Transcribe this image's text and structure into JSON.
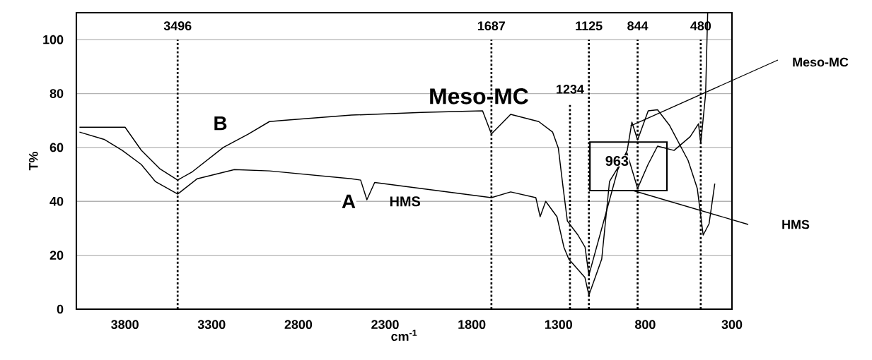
{
  "chart_data": {
    "type": "line",
    "xlabel": "cm$^{-1}$",
    "ylabel": "T%",
    "xlim": [
      4080,
      300
    ],
    "ylim": [
      0,
      110
    ],
    "xticks": [
      3800,
      3300,
      2800,
      2300,
      1800,
      1300,
      800,
      300
    ],
    "yticks": [
      0,
      20,
      40,
      60,
      80,
      100
    ],
    "grid": "y",
    "series": [
      {
        "name": "Meso-MC",
        "color": "#000000",
        "x": [
          4062,
          3799,
          3706,
          3597,
          3496,
          3411,
          3233,
          3088,
          2967,
          2898,
          2494,
          2089,
          1738,
          1687,
          1576,
          1414,
          1334,
          1301,
          1273,
          1249,
          1188,
          1147,
          1125,
          1025,
          958,
          904,
          877,
          844,
          783,
          729,
          661,
          553,
          500,
          466,
          432,
          399
        ],
        "values": [
          67.5,
          67.5,
          59,
          52,
          47.9,
          51,
          60,
          65,
          69.6,
          70,
          72,
          73,
          73.6,
          65,
          72.3,
          69.6,
          65.7,
          59.7,
          44.8,
          32.7,
          27.5,
          23,
          12.6,
          36,
          51.8,
          58.9,
          69.4,
          62.8,
          73.6,
          74,
          68.3,
          55.2,
          44.8,
          27.5,
          31.7,
          46.6
        ]
      },
      {
        "name": "HMS",
        "color": "#000000",
        "x": [
          4062,
          3920,
          3815,
          3706,
          3625,
          3496,
          3383,
          3169,
          2966,
          2494,
          2441,
          2405,
          2360,
          1687,
          1576,
          1431,
          1406,
          1374,
          1309,
          1269,
          1241,
          1148,
          1125,
          1051,
          1006,
          958,
          905,
          844,
          784,
          729,
          634,
          541,
          493,
          480,
          452,
          440
        ],
        "values": [
          65.7,
          63,
          58.9,
          53.7,
          47.4,
          42.7,
          48.4,
          51.8,
          51.3,
          48.4,
          47.9,
          40.6,
          47,
          41.4,
          43.5,
          41.4,
          34.3,
          40,
          34.3,
          23,
          18.6,
          11.8,
          5.2,
          18.6,
          47.4,
          52.5,
          57.9,
          44.8,
          53.7,
          60.5,
          58.9,
          64,
          68.8,
          61.5,
          79.8,
          110
        ]
      }
    ],
    "ref_lines": [
      {
        "axis": "x",
        "value": 3496,
        "label": "3496",
        "color": "#000000",
        "line_style": "dotted"
      },
      {
        "axis": "x",
        "value": 1687,
        "label": "1687",
        "color": "#000000",
        "line_style": "dotted"
      },
      {
        "axis": "x",
        "value": 1234,
        "label": "1234",
        "color": "#000000",
        "line_style": "dotted"
      },
      {
        "axis": "x",
        "value": 1125,
        "label": "1125",
        "color": "#000000",
        "line_style": "dotted"
      },
      {
        "axis": "x",
        "value": 844,
        "label": "844",
        "color": "#000000",
        "line_style": "dotted"
      },
      {
        "axis": "x",
        "value": 480,
        "label": "480",
        "color": "#000000",
        "line_style": "dotted"
      }
    ],
    "annotations": [
      {
        "text": "B",
        "x": 3250,
        "y": 69
      },
      {
        "text": "A",
        "x": 2510,
        "y": 40
      },
      {
        "text": "963",
        "x": 963,
        "y": 55
      },
      {
        "text": "Meso-MC",
        "x": 885,
        "y": 68
      },
      "HMS"
    ]
  }
}
